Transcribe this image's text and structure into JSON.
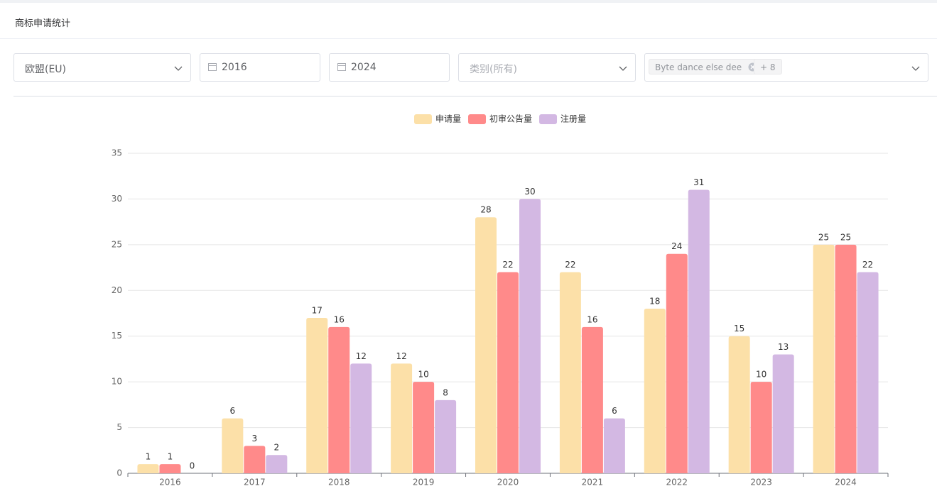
{
  "header": {
    "title": "商标申请统计"
  },
  "filters": {
    "region": "欧盟(EU)",
    "start_year": "2016",
    "end_year": "2024",
    "category": "类别(所有)",
    "tags": [
      "Byte dance else dee",
      "+ 8"
    ]
  },
  "chart_data": {
    "type": "bar",
    "categories": [
      "2016",
      "2017",
      "2018",
      "2019",
      "2020",
      "2021",
      "2022",
      "2023",
      "2024"
    ],
    "series": [
      {
        "name": "申请量",
        "color": "#fce0a8",
        "values": [
          1,
          6,
          17,
          12,
          28,
          22,
          18,
          15,
          25
        ]
      },
      {
        "name": "初审公告量",
        "color": "#ff8a8a",
        "values": [
          1,
          3,
          16,
          10,
          22,
          16,
          24,
          10,
          25
        ]
      },
      {
        "name": "注册量",
        "color": "#d3b8e3",
        "values": [
          0,
          2,
          12,
          8,
          30,
          6,
          31,
          13,
          22
        ]
      }
    ],
    "ylim": [
      0,
      35
    ],
    "yticks": [
      0,
      5,
      10,
      15,
      20,
      25,
      30,
      35
    ],
    "grid": true,
    "legend": "top"
  }
}
